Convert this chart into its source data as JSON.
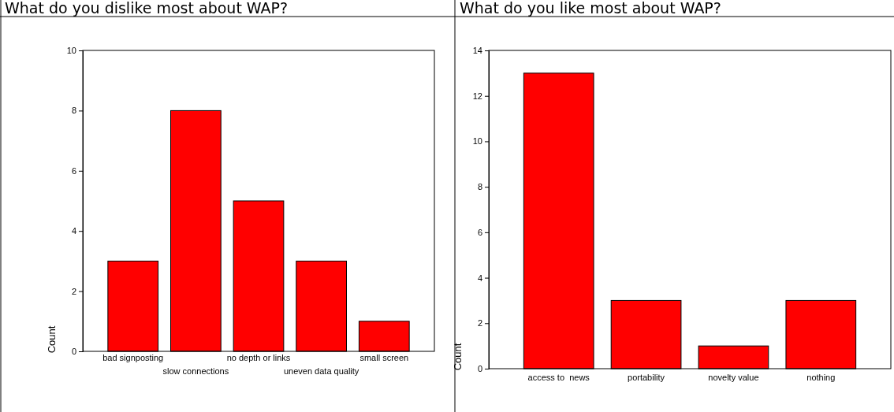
{
  "chart_data": [
    {
      "type": "bar",
      "title": "What do you dislike most about WAP?",
      "ylabel": "Count",
      "categories": [
        "bad signposting",
        "slow connections",
        "no depth or links",
        "uneven data quality",
        "small screen"
      ],
      "values": [
        3,
        8,
        5,
        3,
        1
      ],
      "color": "#ff0000",
      "ylim": [
        0,
        10
      ],
      "yticks": [
        0,
        2,
        4,
        6,
        8,
        10
      ],
      "grid": false
    },
    {
      "type": "bar",
      "title": "What do you like most about WAP?",
      "ylabel": "Count",
      "categories": [
        "access to  news",
        "portability",
        "novelty value",
        "nothing"
      ],
      "values": [
        13,
        3,
        1,
        3
      ],
      "color": "#ff0000",
      "ylim": [
        0,
        14
      ],
      "yticks": [
        0,
        2,
        4,
        6,
        8,
        10,
        12,
        14
      ],
      "grid": false
    }
  ]
}
